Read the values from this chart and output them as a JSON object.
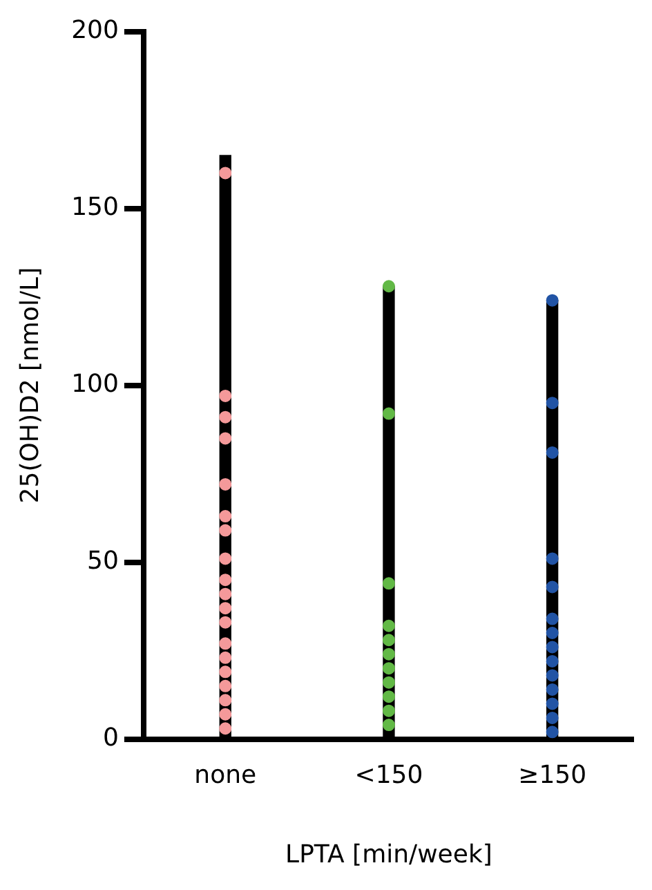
{
  "chart_data": {
    "type": "scatter",
    "xlabel": "LPTA [min/week]",
    "ylabel": "25(OH)D2 [nmol/L]",
    "categories": [
      "none",
      "<150",
      "≥150"
    ],
    "ylim": [
      0,
      200
    ],
    "yticks": [
      0,
      50,
      100,
      150,
      200
    ],
    "grid": false,
    "legend": false,
    "marker": "circle",
    "series": [
      {
        "type": "bar",
        "color": "#000000",
        "base": [
          0,
          0,
          0
        ],
        "values": [
          165,
          128,
          124
        ]
      },
      {
        "color": "#f4999a",
        "x": [
          "none",
          "none",
          "none",
          "none",
          "none",
          "none",
          "none",
          "none",
          "none",
          "none",
          "none",
          "none",
          "none",
          "none",
          "none",
          "none",
          "none",
          "none",
          "none"
        ],
        "values": [
          160,
          97,
          91,
          85,
          72,
          63,
          59,
          51,
          45,
          41,
          37,
          33,
          27,
          23,
          19,
          15,
          11,
          7,
          3
        ]
      },
      {
        "color": "#62b946",
        "x": [
          "<150",
          "<150",
          "<150",
          "<150",
          "<150",
          "<150",
          "<150",
          "<150",
          "<150",
          "<150",
          "<150"
        ],
        "values": [
          128,
          92,
          44,
          32,
          28,
          24,
          20,
          16,
          12,
          8,
          4
        ]
      },
      {
        "color": "#2254a5",
        "x": [
          "≥150",
          "≥150",
          "≥150",
          "≥150",
          "≥150",
          "≥150",
          "≥150",
          "≥150",
          "≥150",
          "≥150",
          "≥150",
          "≥150",
          "≥150",
          "≥150"
        ],
        "values": [
          124,
          95,
          81,
          51,
          43,
          34,
          30,
          26,
          22,
          18,
          14,
          10,
          6,
          2
        ]
      }
    ]
  }
}
